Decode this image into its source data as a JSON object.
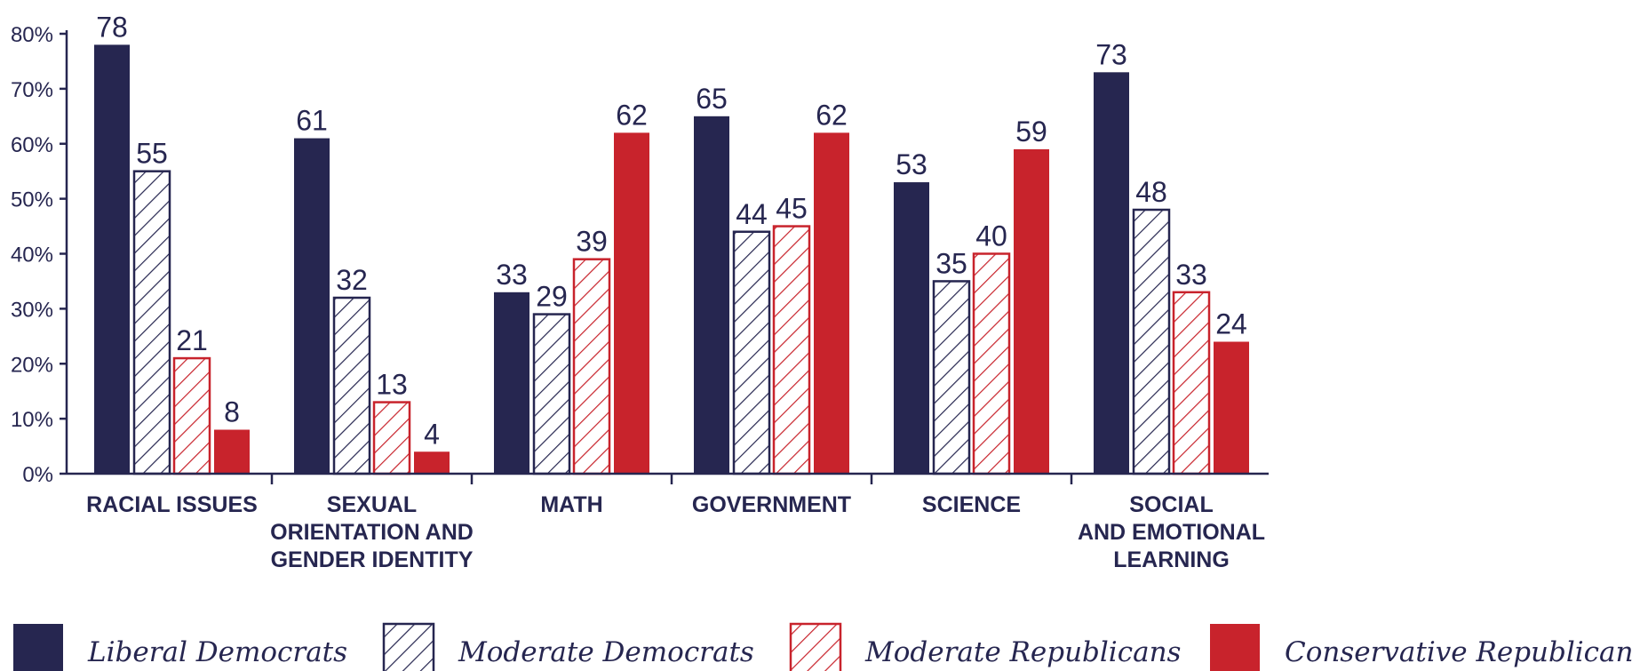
{
  "chart_data": {
    "type": "bar",
    "categories": [
      [
        "RACIAL ISSUES"
      ],
      [
        "SEXUAL",
        "ORIENTATION AND",
        "GENDER IDENTITY"
      ],
      [
        "MATH"
      ],
      [
        "GOVERNMENT"
      ],
      [
        "SCIENCE"
      ],
      [
        "SOCIAL",
        "AND EMOTIONAL",
        "LEARNING"
      ]
    ],
    "series": [
      {
        "name": "Liberal Democrats",
        "values": [
          78,
          61,
          33,
          65,
          53,
          73
        ],
        "color": "#262650",
        "pattern": "solid"
      },
      {
        "name": "Moderate Democrats",
        "values": [
          55,
          32,
          29,
          44,
          35,
          48
        ],
        "color": "#262650",
        "pattern": "hatched"
      },
      {
        "name": "Moderate Republicans",
        "values": [
          21,
          13,
          39,
          45,
          40,
          33
        ],
        "color": "#c8232c",
        "pattern": "hatched"
      },
      {
        "name": "Conservative Republicans",
        "values": [
          8,
          4,
          62,
          62,
          59,
          24
        ],
        "color": "#c8232c",
        "pattern": "solid"
      }
    ],
    "yticks": [
      "0%",
      "10%",
      "20%",
      "30%",
      "40%",
      "50%",
      "60%",
      "70%",
      "80%"
    ],
    "ylim": [
      0,
      80
    ],
    "grid": false,
    "legend_position": "bottom"
  }
}
